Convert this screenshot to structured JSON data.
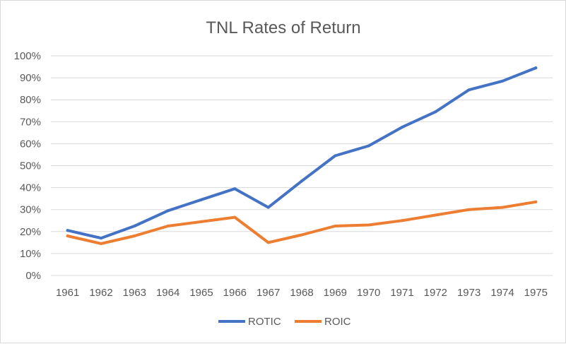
{
  "chart_data": {
    "type": "line",
    "title": "TNL Rates of Return",
    "xlabel": "",
    "ylabel": "",
    "categories": [
      "1961",
      "1962",
      "1963",
      "1964",
      "1965",
      "1966",
      "1967",
      "1968",
      "1969",
      "1970",
      "1971",
      "1972",
      "1973",
      "1974",
      "1975"
    ],
    "ylim": [
      0,
      100
    ],
    "y_ticks": [
      "0%",
      "10%",
      "20%",
      "30%",
      "40%",
      "50%",
      "60%",
      "70%",
      "80%",
      "90%",
      "100%"
    ],
    "grid": true,
    "legend_position": "bottom",
    "series": [
      {
        "name": "ROTIC",
        "color": "#4472c4",
        "values": [
          20.5,
          17,
          22.5,
          29.5,
          34.5,
          39.5,
          31,
          43,
          54.5,
          59,
          67.5,
          74.5,
          84.5,
          88.5,
          94.5
        ]
      },
      {
        "name": "ROIC",
        "color": "#ed7d31",
        "values": [
          18,
          14.5,
          18,
          22.5,
          24.5,
          26.5,
          15,
          18.5,
          22.5,
          23,
          25,
          27.5,
          30,
          31,
          33.5
        ]
      }
    ]
  }
}
